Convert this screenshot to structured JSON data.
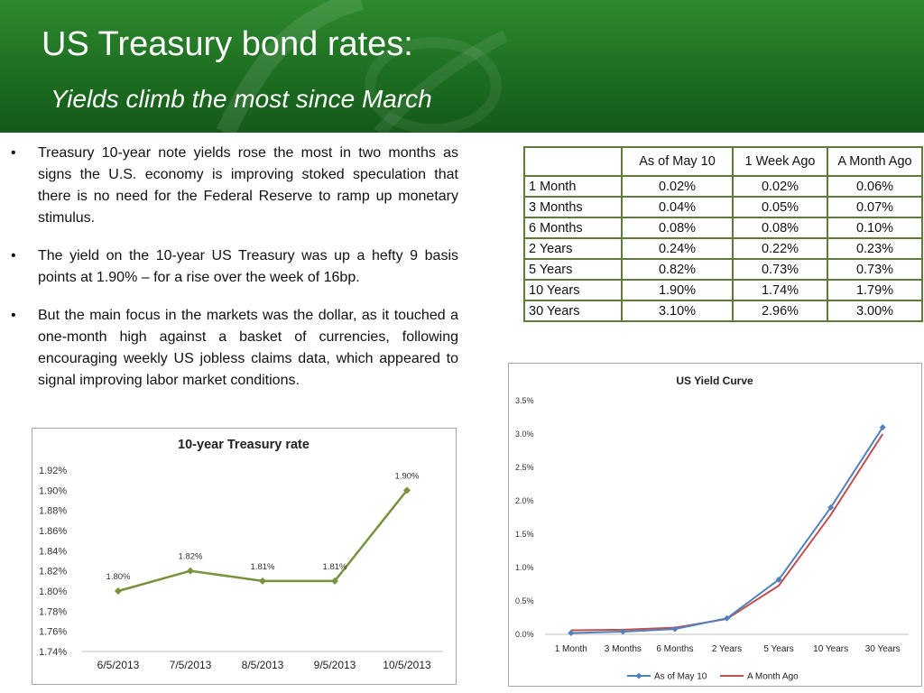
{
  "slide": {
    "title": "US Treasury bond rates:",
    "subtitle": "Yields climb the most since March"
  },
  "bullets": [
    "Treasury 10-year note yields rose the most in two months as signs the U.S. economy is improving stoked speculation that there is no need for the Federal Reserve to ramp up monetary stimulus.",
    " The yield on the 10-year US Treasury was up a hefty 9 basis points at 1.90% – for a rise over the week of 16bp.",
    "But the main focus in the markets was the dollar, as it touched a one-month high against a basket of currencies, following encouraging weekly US jobless claims data, which appeared to signal improving labor market conditions."
  ],
  "bullet_symbol": "•",
  "table": {
    "headers": [
      "",
      "As of May 10",
      "1 Week Ago",
      "A Month Ago"
    ],
    "rows": [
      [
        "1 Month",
        "0.02%",
        "0.02%",
        "0.06%"
      ],
      [
        "3 Months",
        "0.04%",
        "0.05%",
        "0.07%"
      ],
      [
        "6 Months",
        "0.08%",
        "0.08%",
        "0.10%"
      ],
      [
        "2 Years",
        "0.24%",
        "0.22%",
        "0.23%"
      ],
      [
        "5 Years",
        "0.82%",
        "0.73%",
        "0.73%"
      ],
      [
        "10 Years",
        "1.90%",
        "1.74%",
        "1.79%"
      ],
      [
        "30 Years",
        "3.10%",
        "2.96%",
        "3.00%"
      ]
    ]
  },
  "chart_data": [
    {
      "type": "line",
      "title": "10-year Treasury rate",
      "categories": [
        "6/5/2013",
        "7/5/2013",
        "8/5/2013",
        "9/5/2013",
        "10/5/2013"
      ],
      "series": [
        {
          "values": [
            1.8,
            1.82,
            1.81,
            1.81,
            1.9
          ],
          "color": "#77933c"
        }
      ],
      "data_labels": [
        "1.80%",
        "1.82%",
        "1.81%",
        "1.81%",
        "1.90%"
      ],
      "yticks": [
        "1.74%",
        "1.76%",
        "1.78%",
        "1.80%",
        "1.82%",
        "1.84%",
        "1.86%",
        "1.88%",
        "1.90%",
        "1.92%"
      ],
      "ylim": [
        1.74,
        1.92
      ],
      "grid": false,
      "legend": "none"
    },
    {
      "type": "line",
      "title": "US Yield Curve",
      "categories": [
        "1 Month",
        "3 Months",
        "6 Months",
        "2 Years",
        "5 Years",
        "10 Years",
        "30 Years"
      ],
      "series": [
        {
          "name": "As of May 10",
          "values": [
            0.02,
            0.04,
            0.08,
            0.24,
            0.82,
            1.9,
            3.1
          ],
          "color": "#4f81bd",
          "markers": true
        },
        {
          "name": "A Month Ago",
          "values": [
            0.06,
            0.07,
            0.1,
            0.23,
            0.73,
            1.79,
            3.0
          ],
          "color": "#c0504d",
          "markers": false
        }
      ],
      "yticks": [
        "0.0%",
        "0.5%",
        "1.0%",
        "1.5%",
        "2.0%",
        "2.5%",
        "3.0%",
        "3.5%"
      ],
      "ylim": [
        0,
        3.5
      ],
      "grid": false,
      "legend": "bottom"
    }
  ]
}
